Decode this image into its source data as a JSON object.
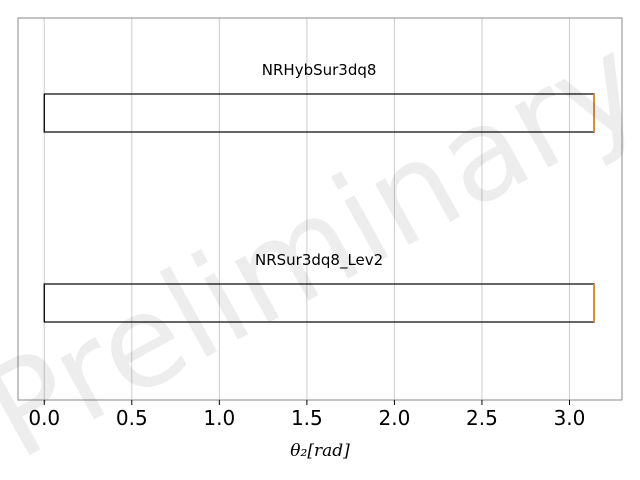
{
  "chart_data": {
    "type": "box",
    "orientation": "horizontal",
    "xlabel": "θ₂[rad]",
    "xlim": [
      -0.15,
      3.3
    ],
    "xticks": [
      0.0,
      0.5,
      1.0,
      1.5,
      2.0,
      2.5,
      3.0
    ],
    "xtick_labels": [
      "0.0",
      "0.5",
      "1.0",
      "1.5",
      "2.0",
      "2.5",
      "3.0"
    ],
    "grid": "vertical",
    "watermark": "Preliminary",
    "series": [
      {
        "name": "NRHybSur3dq8",
        "min": 0.0,
        "q1": 0.0,
        "median": 3.14,
        "q3": 3.14,
        "max": 3.14
      },
      {
        "name": "NRSur3dq8_Lev2",
        "min": 0.0,
        "q1": 0.0,
        "median": 3.14,
        "q3": 3.14,
        "max": 3.14
      }
    ],
    "colors": {
      "box": "#000000",
      "median": "#e08a3c",
      "whisker": "#888888",
      "grid": "#cccccc",
      "axes": "#888888"
    }
  }
}
